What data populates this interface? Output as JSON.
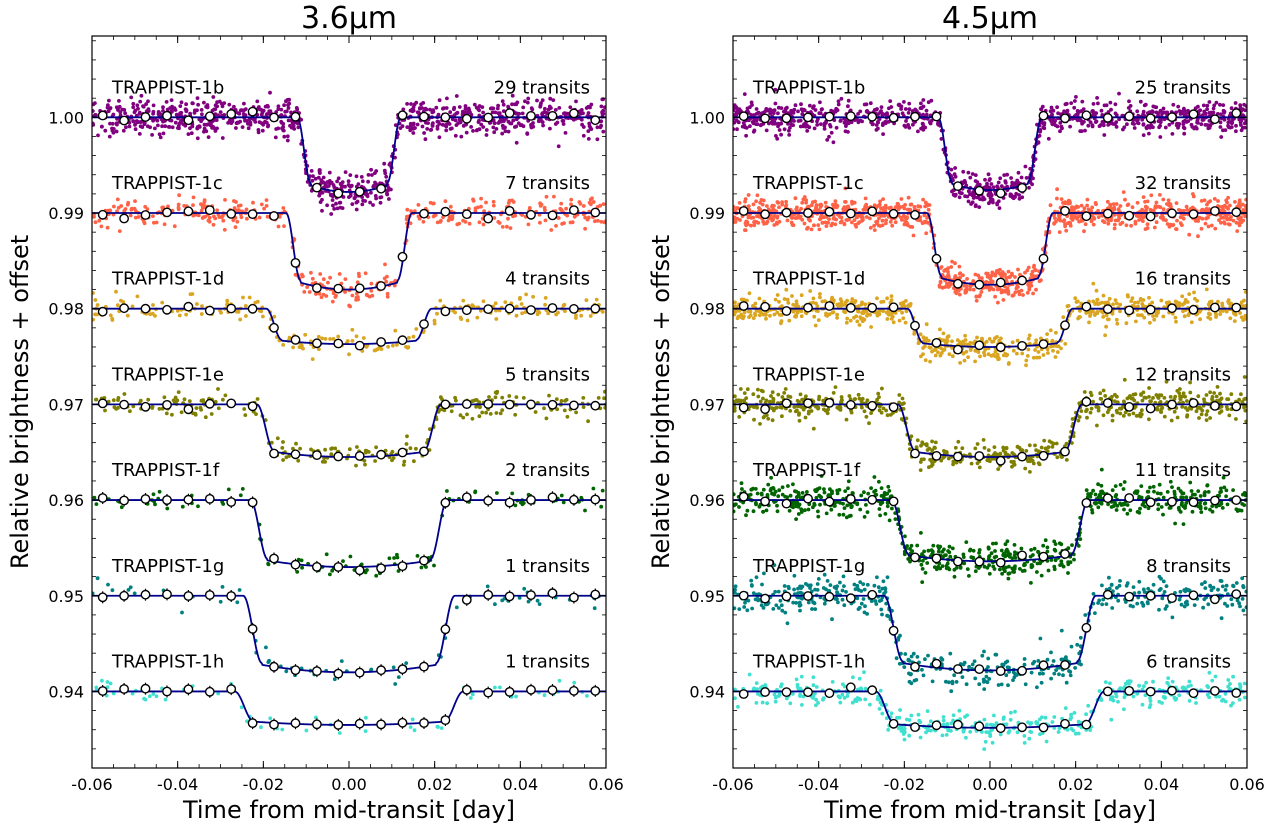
{
  "chart_data": [
    {
      "type": "scatter",
      "title": "3.6μm",
      "xlabel": "Time from mid-transit [day]",
      "ylabel": "Relative brightness + offset",
      "xlim": [
        -0.06,
        0.06
      ],
      "ylim": [
        0.932,
        1.0085
      ],
      "xticks": [
        "-0.06",
        "-0.04",
        "-0.02",
        "0.00",
        "0.02",
        "0.04",
        "0.06"
      ],
      "yticks": [
        "0.94",
        "0.95",
        "0.96",
        "0.97",
        "0.98",
        "0.99",
        "1.00"
      ],
      "grid": false,
      "series": [
        {
          "name": "TRAPPIST-1b",
          "count_label": "29 transits",
          "color": "#800080",
          "baseline": 1.0,
          "depth": 0.0078,
          "half_duration": 0.0105,
          "ingress": 0.0016,
          "noise": 0.00095,
          "n_points": 1000
        },
        {
          "name": "TRAPPIST-1c",
          "count_label": "7 transits",
          "color": "#ff6347",
          "baseline": 0.99,
          "depth": 0.008,
          "half_duration": 0.013,
          "ingress": 0.0017,
          "noise": 0.00075,
          "n_points": 420
        },
        {
          "name": "TRAPPIST-1d",
          "count_label": "4 transits",
          "color": "#daa520",
          "baseline": 0.98,
          "depth": 0.0037,
          "half_duration": 0.0175,
          "ingress": 0.0018,
          "noise": 0.00065,
          "n_points": 230
        },
        {
          "name": "TRAPPIST-1e",
          "count_label": "5 transits",
          "color": "#808000",
          "baseline": 0.97,
          "depth": 0.0055,
          "half_duration": 0.0195,
          "ingress": 0.002,
          "noise": 0.0006,
          "n_points": 260
        },
        {
          "name": "TRAPPIST-1f",
          "count_label": "2 transits",
          "color": "#006400",
          "baseline": 0.96,
          "depth": 0.007,
          "half_duration": 0.021,
          "ingress": 0.002,
          "noise": 0.00055,
          "n_points": 110
        },
        {
          "name": "TRAPPIST-1g",
          "count_label": "1 transits",
          "color": "#008080",
          "baseline": 0.95,
          "depth": 0.008,
          "half_duration": 0.0225,
          "ingress": 0.0022,
          "noise": 0.0006,
          "n_points": 65
        },
        {
          "name": "TRAPPIST-1h",
          "count_label": "1 transits",
          "color": "#40e0d0",
          "baseline": 0.94,
          "depth": 0.0035,
          "half_duration": 0.0245,
          "ingress": 0.0022,
          "noise": 0.0005,
          "n_points": 65
        }
      ]
    },
    {
      "type": "scatter",
      "title": "4.5μm",
      "xlabel": "Time from mid-transit [day]",
      "ylabel": "Relative brightness + offset",
      "xlim": [
        -0.06,
        0.06
      ],
      "ylim": [
        0.932,
        1.0085
      ],
      "xticks": [
        "-0.06",
        "-0.04",
        "-0.02",
        "0.00",
        "0.02",
        "0.04",
        "0.06"
      ],
      "yticks": [
        "0.94",
        "0.95",
        "0.96",
        "0.97",
        "0.98",
        "0.99",
        "1.00"
      ],
      "grid": false,
      "series": [
        {
          "name": "TRAPPIST-1b",
          "count_label": "25 transits",
          "color": "#800080",
          "baseline": 1.0,
          "depth": 0.0076,
          "half_duration": 0.0105,
          "ingress": 0.0016,
          "noise": 0.00085,
          "n_points": 1000
        },
        {
          "name": "TRAPPIST-1c",
          "count_label": "32 transits",
          "color": "#ff6347",
          "baseline": 0.99,
          "depth": 0.0075,
          "half_duration": 0.013,
          "ingress": 0.0017,
          "noise": 0.0008,
          "n_points": 1100
        },
        {
          "name": "TRAPPIST-1d",
          "count_label": "16 transits",
          "color": "#daa520",
          "baseline": 0.98,
          "depth": 0.004,
          "half_duration": 0.0175,
          "ingress": 0.0018,
          "noise": 0.00075,
          "n_points": 700
        },
        {
          "name": "TRAPPIST-1e",
          "count_label": "12 transits",
          "color": "#808000",
          "baseline": 0.97,
          "depth": 0.0055,
          "half_duration": 0.0195,
          "ingress": 0.002,
          "noise": 0.0008,
          "n_points": 640
        },
        {
          "name": "TRAPPIST-1f",
          "count_label": "11 transits",
          "color": "#006400",
          "baseline": 0.96,
          "depth": 0.0064,
          "half_duration": 0.021,
          "ingress": 0.002,
          "noise": 0.00085,
          "n_points": 700
        },
        {
          "name": "TRAPPIST-1g",
          "count_label": "8 transits",
          "color": "#008080",
          "baseline": 0.95,
          "depth": 0.0078,
          "half_duration": 0.0225,
          "ingress": 0.0022,
          "noise": 0.0009,
          "n_points": 520
        },
        {
          "name": "TRAPPIST-1h",
          "count_label": "6 transits",
          "color": "#40e0d0",
          "baseline": 0.94,
          "depth": 0.0038,
          "half_duration": 0.0245,
          "ingress": 0.0022,
          "noise": 0.00075,
          "n_points": 430
        }
      ]
    }
  ]
}
